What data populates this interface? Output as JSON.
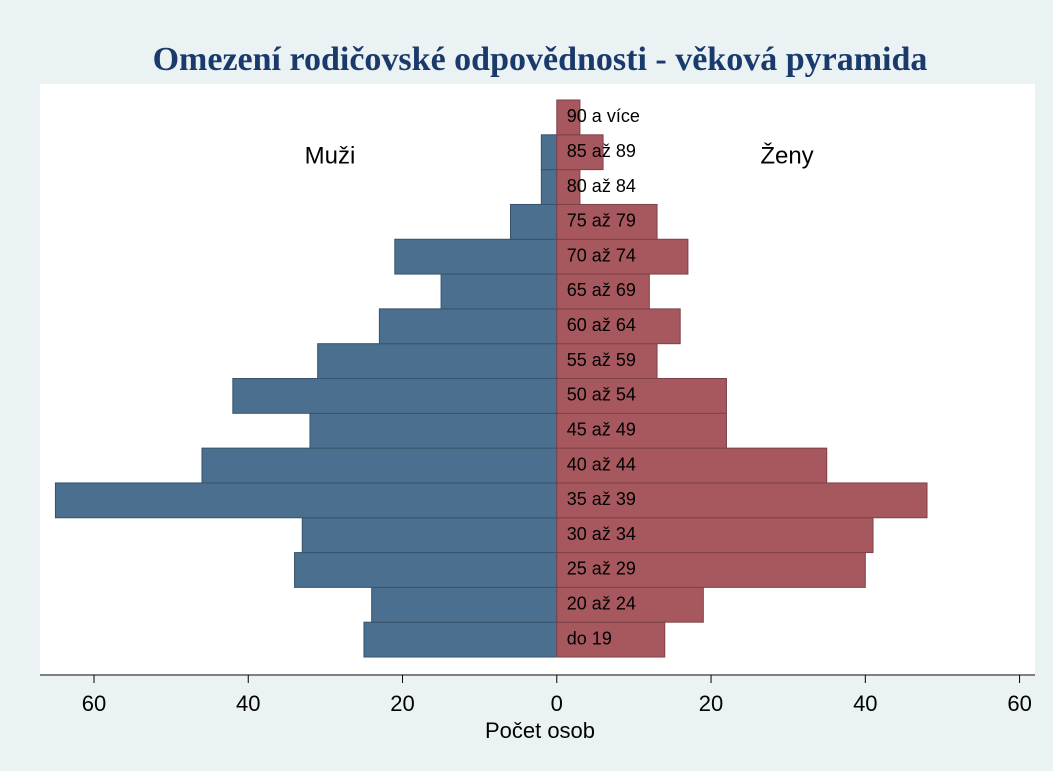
{
  "chart_data": {
    "type": "pyramid",
    "title": "Omezení rodičovské odpovědnosti - věková pyramida",
    "x_label": "Počet osob",
    "categories": [
      "do 19",
      "20 až 24",
      "25 až 29",
      "30 až 34",
      "35 až 39",
      "40 až 44",
      "45 až 49",
      "50 až 54",
      "55 až 59",
      "60 až 64",
      "65 až 69",
      "70 až 74",
      "75 až 79",
      "80 až 84",
      "85 až 89",
      "90 a více"
    ],
    "series": [
      {
        "name": "Muži",
        "color": "#4a6f8f",
        "side": "left",
        "values": [
          25,
          24,
          34,
          33,
          65,
          46,
          32,
          42,
          31,
          23,
          15,
          21,
          6,
          2,
          2,
          0
        ]
      },
      {
        "name": "Ženy",
        "color": "#a6585e",
        "side": "right",
        "values": [
          14,
          19,
          40,
          41,
          48,
          35,
          22,
          22,
          13,
          16,
          12,
          17,
          13,
          3,
          6,
          3
        ]
      }
    ],
    "xlim": [
      -67,
      62
    ],
    "xticks": [
      {
        "value": -60,
        "label": "60"
      },
      {
        "value": -40,
        "label": "40"
      },
      {
        "value": -20,
        "label": "20"
      },
      0,
      20,
      40,
      60
    ]
  }
}
